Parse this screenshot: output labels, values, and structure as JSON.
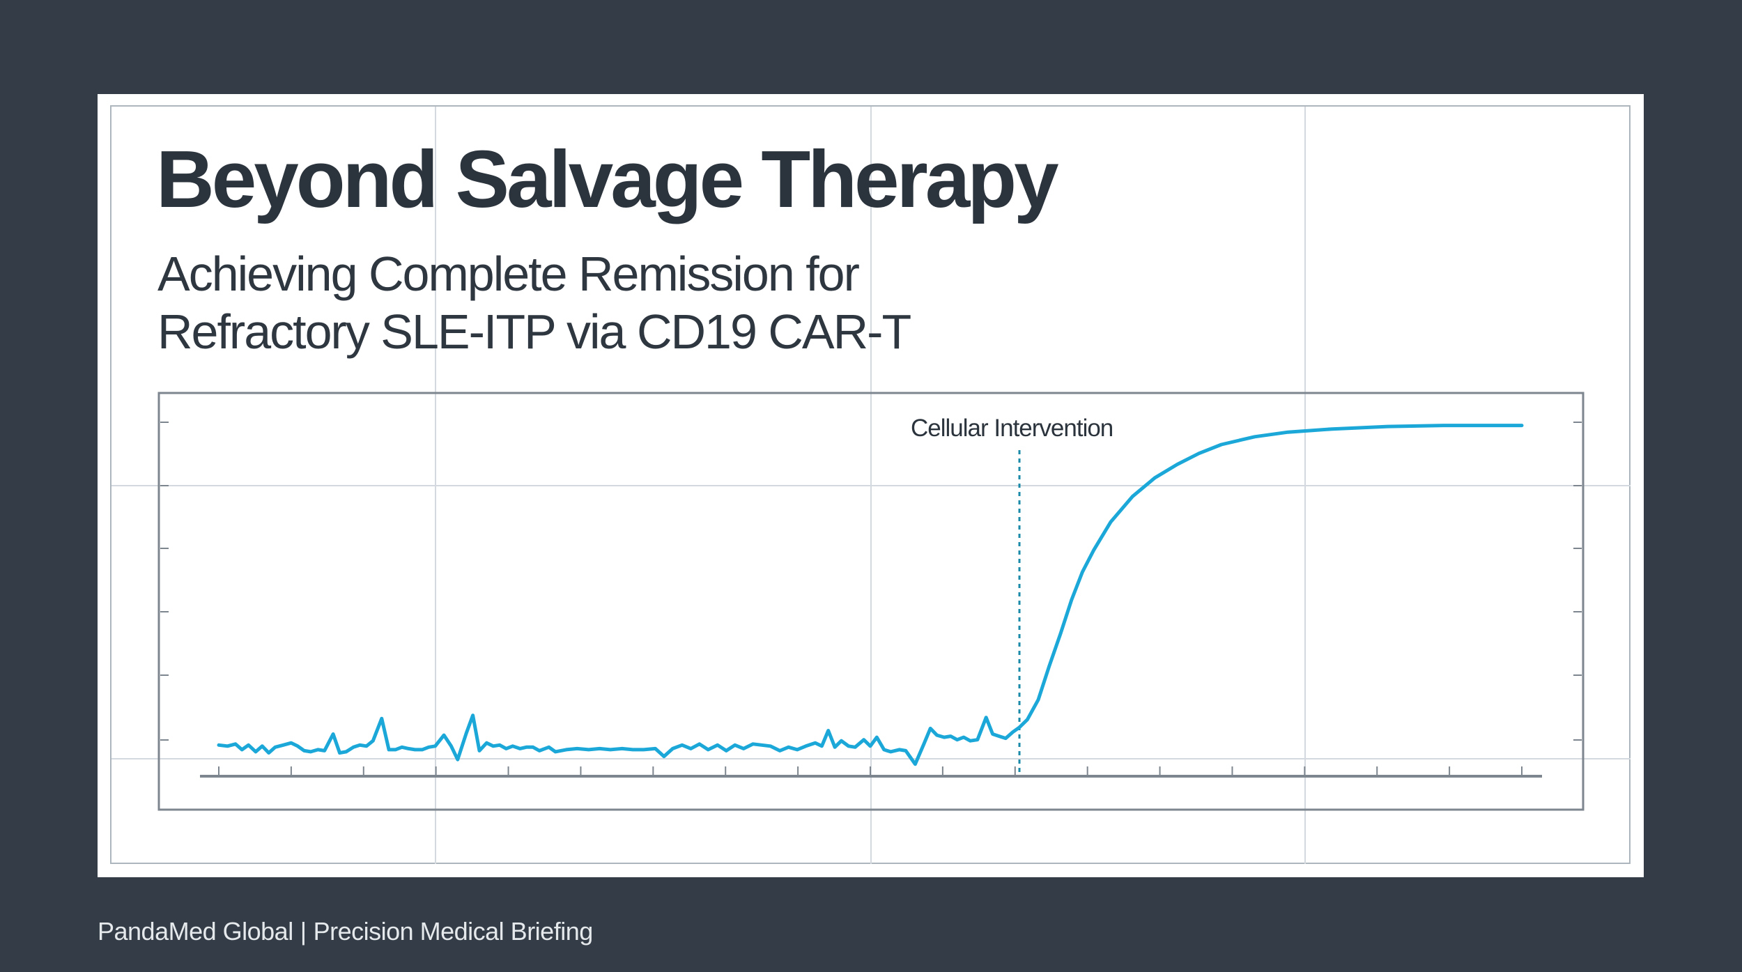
{
  "slide": {
    "title": "Beyond Salvage Therapy",
    "subtitle_lines": [
      "Achieving Complete Remission for",
      "Refractory SLE-ITP via CD19 CAR-T"
    ],
    "footer": {
      "brand": "PandaMed Global",
      "separator": "|",
      "tagline": "Precision Medical Briefing"
    }
  },
  "colors": {
    "background": "#343d47",
    "card": "#ffffff",
    "text": "#2b333c",
    "series": "#1ba8d8",
    "grid": "#d3d9de",
    "axis": "#7d868e"
  },
  "chart_data": {
    "type": "line",
    "title": "",
    "xlabel": "",
    "ylabel": "",
    "xlim": [
      0,
      18
    ],
    "ylim": [
      0,
      100
    ],
    "x_ticks": 19,
    "y_ticks": 6,
    "grid": true,
    "annotation": {
      "label": "Cellular Intervention",
      "x": 11.06,
      "style": "dashed-vertical"
    },
    "series": [
      {
        "x": [
          0,
          0.12,
          0.23,
          0.32,
          0.41,
          0.51,
          0.6,
          0.69,
          0.78,
          0.89,
          1.0,
          1.09,
          1.18,
          1.27,
          1.37,
          1.46,
          1.58,
          1.67,
          1.76,
          1.86,
          1.95,
          2.04,
          2.13,
          2.25,
          2.35,
          2.44,
          2.53,
          2.62,
          2.71,
          2.81,
          2.9,
          2.99,
          3.11,
          3.21,
          3.3,
          3.42,
          3.51,
          3.6,
          3.7,
          3.79,
          3.88,
          3.97,
          4.06,
          4.16,
          4.25,
          4.34,
          4.43,
          4.56,
          4.65,
          4.8,
          4.95,
          5.11,
          5.26,
          5.41,
          5.57,
          5.72,
          5.87,
          6.03,
          6.15,
          6.27,
          6.4,
          6.52,
          6.64,
          6.76,
          6.89,
          7.01,
          7.13,
          7.25,
          7.38,
          7.5,
          7.62,
          7.75,
          7.87,
          7.99,
          8.11,
          8.24,
          8.33,
          8.42,
          8.51,
          8.6,
          8.7,
          8.79,
          8.91,
          9.0,
          9.09,
          9.19,
          9.28,
          9.4,
          9.49,
          9.62,
          9.74,
          9.83,
          9.92,
          10.02,
          10.11,
          10.2,
          10.29,
          10.38,
          10.48,
          10.6,
          10.69,
          10.78,
          10.87,
          10.97,
          11.06,
          11.17,
          11.32,
          11.47,
          11.63,
          11.78,
          11.93,
          12.09,
          12.32,
          12.62,
          12.93,
          13.24,
          13.54,
          13.85,
          14.31,
          14.77,
          15.38,
          16.15,
          16.92,
          18
        ],
        "y": [
          8.8,
          8.5,
          9.1,
          7.5,
          8.8,
          6.9,
          8.5,
          6.6,
          8.2,
          8.8,
          9.4,
          8.5,
          7.2,
          6.9,
          7.5,
          7.2,
          11.9,
          6.6,
          6.9,
          8.2,
          8.8,
          8.5,
          10.0,
          16.3,
          7.5,
          7.5,
          8.2,
          7.8,
          7.5,
          7.5,
          8.2,
          8.5,
          11.6,
          8.5,
          4.7,
          12.2,
          17.2,
          7.2,
          9.4,
          8.5,
          8.8,
          7.8,
          8.5,
          7.8,
          8.2,
          8.2,
          7.2,
          8.2,
          6.9,
          7.5,
          7.8,
          7.5,
          7.8,
          7.5,
          7.8,
          7.5,
          7.5,
          7.8,
          5.6,
          7.8,
          8.8,
          7.8,
          9.1,
          7.5,
          8.8,
          7.2,
          8.8,
          7.8,
          9.1,
          8.8,
          8.5,
          7.2,
          8.2,
          7.5,
          8.5,
          9.4,
          8.5,
          12.9,
          8.2,
          10.0,
          8.5,
          8.2,
          10.3,
          8.5,
          11.0,
          7.5,
          6.9,
          7.5,
          7.2,
          3.4,
          9.1,
          13.5,
          11.6,
          11.0,
          11.3,
          10.3,
          11.0,
          10.0,
          10.3,
          16.6,
          11.9,
          11.3,
          10.7,
          12.5,
          13.8,
          16.0,
          21.6,
          31.0,
          40.4,
          49.8,
          57.7,
          64.0,
          71.8,
          79.0,
          84.3,
          88.1,
          91.2,
          93.7,
          95.9,
          97.2,
          98.1,
          98.8,
          99.1,
          99.1
        ]
      }
    ]
  }
}
